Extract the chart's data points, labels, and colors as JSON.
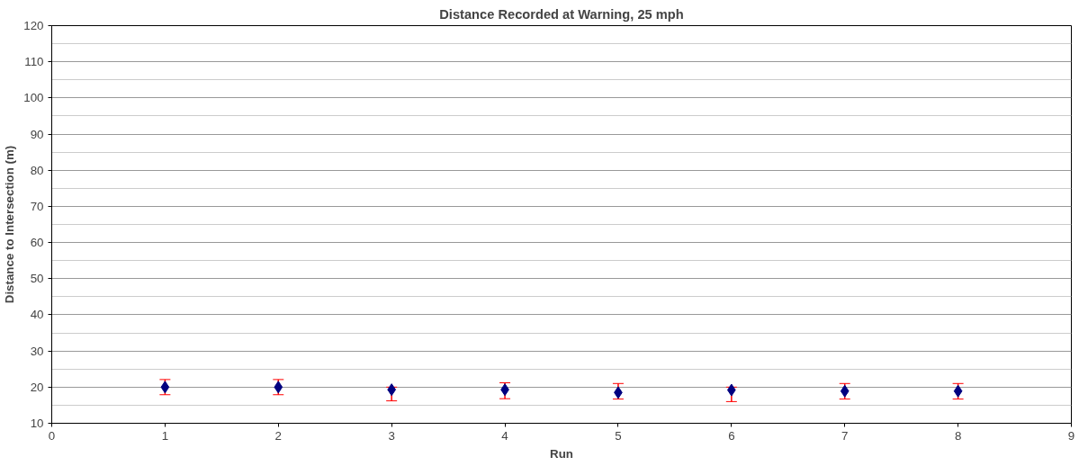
{
  "chart_data": {
    "type": "scatter",
    "title": "Distance Recorded at Warning, 25 mph",
    "xlabel": "Run",
    "ylabel": "Distance to Intersection (m)",
    "x": [
      1,
      2,
      3,
      4,
      5,
      6,
      7,
      8
    ],
    "series": [
      {
        "color": "#000080",
        "values": [
          20.0,
          20.0,
          19.3,
          19.3,
          18.5,
          19.2,
          18.9,
          18.9
        ],
        "errors": [
          [
            17.9,
            22.1
          ],
          [
            17.9,
            22.1
          ],
          [
            16.2,
            20.0
          ],
          [
            16.8,
            21.2
          ],
          [
            16.7,
            21.0
          ],
          [
            16.0,
            20.0
          ],
          [
            16.7,
            21.0
          ],
          [
            16.7,
            21.0
          ]
        ]
      }
    ],
    "marker": "diamond",
    "xlim": [
      0,
      9
    ],
    "xticks": [
      0,
      1,
      2,
      3,
      4,
      5,
      6,
      7,
      8,
      9
    ],
    "ylim": [
      10,
      120
    ],
    "yticks": [
      10,
      20,
      30,
      40,
      50,
      60,
      70,
      80,
      90,
      100,
      110,
      120
    ],
    "grid": "y"
  }
}
